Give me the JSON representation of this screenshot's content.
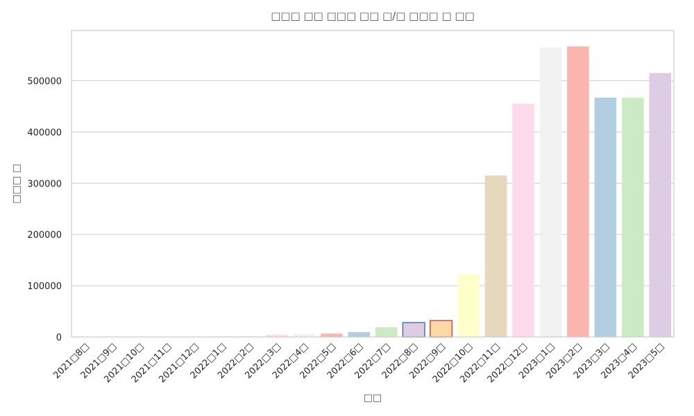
{
  "chart_data": {
    "type": "bar",
    "title": "□□□ □□ □□□ □□ □/□ □□□ □ □□",
    "xlabel": "□□",
    "ylabel": "□□□ □",
    "ylim": [
      0,
      598000
    ],
    "yticks": [
      0,
      100000,
      200000,
      300000,
      400000,
      500000
    ],
    "ytick_labels": [
      "0",
      "100000",
      "200000",
      "300000",
      "400000",
      "500000"
    ],
    "grid": "horizontal",
    "legend": "none",
    "categories": [
      "2021□8□",
      "2021□9□",
      "2021□10□",
      "2021□11□",
      "2021□12□",
      "2022□1□",
      "2022□2□",
      "2022□3□",
      "2022□4□",
      "2022□5□",
      "2022□6□",
      "2022□7□",
      "2022□8□",
      "2022□9□",
      "2022□10□",
      "2022□11□",
      "2022□12□",
      "2023□1□",
      "2023□2□",
      "2023□3□",
      "2023□4□",
      "2023□5□"
    ],
    "values": [
      300,
      500,
      500,
      600,
      800,
      1000,
      1200,
      4500,
      6000,
      6500,
      9500,
      19000,
      28000,
      32000,
      122000,
      315000,
      455000,
      565000,
      567000,
      467000,
      467000,
      515000
    ],
    "colors": [
      "#b3cde3",
      "#ccebc5",
      "#decbe4",
      "#fed9a6",
      "#ffffcc",
      "#e5d8bd",
      "#fddaec",
      "#fddaec",
      "#f2f2f2",
      "#fbb4ae",
      "#b3cde3",
      "#ccebc5",
      "#decbe4",
      "#fed9a6",
      "#ffffcc",
      "#e5d8bd",
      "#fddaec",
      "#f2f2f2",
      "#fbb4ae",
      "#b3cde3",
      "#ccebc5",
      "#decbe4"
    ],
    "edge_colors": [
      "none",
      "none",
      "none",
      "none",
      "none",
      "none",
      "none",
      "none",
      "none",
      "none",
      "none",
      "none",
      "#4c72b0",
      "#c44e52",
      "none",
      "none",
      "none",
      "none",
      "none",
      "none",
      "none",
      "none"
    ]
  }
}
